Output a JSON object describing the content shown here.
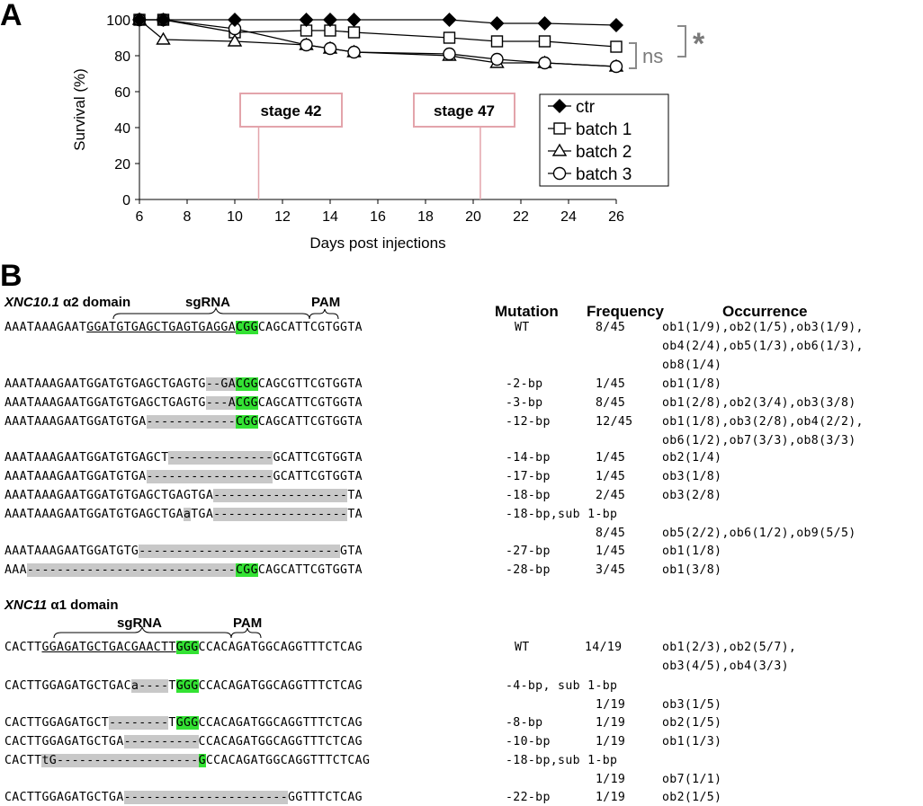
{
  "panel_a": {
    "letter": "A",
    "chart_data": {
      "type": "line",
      "xlabel": "Days post injections",
      "ylabel": "Survival (%)",
      "xlim": [
        6,
        26
      ],
      "ylim": [
        0,
        100
      ],
      "x_ticks": [
        "6",
        "8",
        "10",
        "12",
        "14",
        "16",
        "18",
        "20",
        "22",
        "24",
        "26"
      ],
      "y_ticks": [
        "0",
        "20",
        "40",
        "60",
        "80",
        "100"
      ],
      "series": [
        {
          "name": "ctr",
          "marker": "diamond",
          "x": [
            6,
            7,
            10,
            13,
            14,
            15,
            19,
            21,
            23,
            26
          ],
          "values": [
            100,
            100,
            100,
            100,
            100,
            100,
            100,
            98,
            98,
            97
          ]
        },
        {
          "name": "batch 1",
          "marker": "square",
          "x": [
            6,
            7,
            10,
            13,
            14,
            15,
            19,
            21,
            23,
            26
          ],
          "values": [
            100,
            100,
            93,
            94,
            94,
            93,
            90,
            88,
            88,
            85
          ]
        },
        {
          "name": "batch 2",
          "marker": "triangle",
          "x": [
            6,
            7,
            10,
            13,
            14,
            15,
            19,
            21,
            23,
            26
          ],
          "values": [
            100,
            89,
            88,
            86,
            84,
            82,
            80,
            76,
            76,
            74
          ]
        },
        {
          "name": "batch 3",
          "marker": "circle",
          "x": [
            6,
            7,
            10,
            13,
            14,
            15,
            19,
            21,
            23,
            26
          ],
          "values": [
            100,
            100,
            95,
            86,
            84,
            82,
            81,
            78,
            76,
            74
          ]
        }
      ],
      "annotations": [
        {
          "text": "stage 42",
          "x": 11
        },
        {
          "text": "stage 47",
          "x": 20.3
        }
      ],
      "significance": {
        "ns": "ns",
        "star": "*"
      },
      "legend_position": "center-right"
    }
  },
  "panel_b": {
    "letter": "B",
    "headers": {
      "mutation": "Mutation",
      "frequency": "Frequency",
      "occurrence": "Occurrence"
    },
    "xnc10": {
      "title_gene": "XNC10.1",
      "title_rest": " α2 domain",
      "sgrna_label": "sgRNA",
      "pam_label": "PAM",
      "wt_seq": {
        "pre": "AAATAAAGAAT",
        "sg": "GGATGTGAGCTGAGTGAGGA",
        "pam": "CGG",
        "post": "CAGCATTCGTGGTA"
      },
      "rows": [
        {
          "segs": [
            [
              "n",
              "AAATAAAGAATGGATGTGAGCTGAGTG"
            ],
            [
              "g",
              "--"
            ],
            [
              "g",
              "GA"
            ],
            [
              "p",
              "CGG"
            ],
            [
              "n",
              "CAGCGTTCGTGGTA"
            ]
          ],
          "mutation": "-2-bp",
          "frequency": "1/45",
          "occurrence": "ob1(1/8)"
        },
        {
          "segs": [
            [
              "n",
              "AAATAAAGAATGGATGTGAGCTGAGTG"
            ],
            [
              "g",
              "---"
            ],
            [
              "g",
              "A"
            ],
            [
              "p",
              "CGG"
            ],
            [
              "n",
              "CAGCATTCGTGGTA"
            ]
          ],
          "mutation": "-3-bp",
          "frequency": "8/45",
          "occurrence": "ob1(2/8),ob2(3/4),ob3(3/8)"
        },
        {
          "segs": [
            [
              "n",
              "AAATAAAGAATGGATGTGA"
            ],
            [
              "g",
              "------------"
            ],
            [
              "p",
              "CGG"
            ],
            [
              "n",
              "CAGCATTCGTGGTA"
            ]
          ],
          "mutation": "-12-bp",
          "frequency": "12/45",
          "occurrence": "ob1(1/8),ob3(2/8),ob4(2/2),",
          "occurrence2": "ob6(1/2),ob7(3/3),ob8(3/3)"
        },
        {
          "segs": [
            [
              "n",
              "AAATAAAGAATGGATGTGAGCT"
            ],
            [
              "g",
              "--------------"
            ],
            [
              "n",
              "GCATTCGTGGTA"
            ]
          ],
          "mutation": "-14-bp",
          "frequency": "1/45",
          "occurrence": "ob2(1/4)"
        },
        {
          "segs": [
            [
              "n",
              "AAATAAAGAATGGATGTGA"
            ],
            [
              "g",
              "-----------------"
            ],
            [
              "n",
              "GCATTCGTGGTA"
            ]
          ],
          "mutation": "-17-bp",
          "frequency": "1/45",
          "occurrence": "ob3(1/8)"
        },
        {
          "segs": [
            [
              "n",
              "AAATAAAGAATGGATGTGAGCTGAGTGA"
            ],
            [
              "g",
              "------------------"
            ],
            [
              "n",
              "TA"
            ]
          ],
          "mutation": "-18-bp",
          "frequency": "2/45",
          "occurrence": "ob3(2/8)"
        },
        {
          "segs": [
            [
              "n",
              "AAATAAAGAATGGATGTGAGCTGA"
            ],
            [
              "g",
              "a"
            ],
            [
              "n",
              "TGA"
            ],
            [
              "g",
              "------------------"
            ],
            [
              "n",
              "TA"
            ]
          ],
          "mutation": "-18-bp,sub 1-bp",
          "frequency": "8/45",
          "occurrence": "ob5(2/2),ob6(1/2),ob9(5/5)"
        },
        {
          "segs": [
            [
              "n",
              "AAATAAAGAATGGATGTG"
            ],
            [
              "g",
              "---------------------------"
            ],
            [
              "n",
              "GTA"
            ]
          ],
          "mutation": "-27-bp",
          "frequency": "1/45",
          "occurrence": "ob1(1/8)"
        },
        {
          "segs": [
            [
              "n",
              "AAA"
            ],
            [
              "g",
              "----------------------------"
            ],
            [
              "p",
              "CGG"
            ],
            [
              "n",
              "CAGCATTCGTGGTA"
            ]
          ],
          "mutation": "-28-bp",
          "frequency": "3/45",
          "occurrence": "ob1(3/8)"
        }
      ],
      "wt": {
        "mutation": "WT",
        "frequency": "8/45",
        "occurrence": "ob1(1/9),ob2(1/5),ob3(1/9),",
        "occurrence2": "ob4(2/4),ob5(1/3),ob6(1/3),",
        "occurrence3": "ob8(1/4)"
      }
    },
    "xnc11": {
      "title_gene": "XNC11",
      "title_rest": " α1 domain",
      "sgrna_label": "sgRNA",
      "pam_label": "PAM",
      "wt_seq": {
        "pre": "CACTT",
        "sg": "GGAGATGCTGACGAACTT",
        "pam": "GGG",
        "post": "CCACAGATGGCAGGTTTCTCAG"
      },
      "wt": {
        "mutation": "WT",
        "frequency": "14/19",
        "occurrence": "ob1(2/3),ob2(5/7),",
        "occurrence2": "ob3(4/5),ob4(3/3)"
      },
      "rows": [
        {
          "segs": [
            [
              "n",
              "CACTTGGAGATGCTGAC"
            ],
            [
              "g",
              "a----"
            ],
            [
              "n",
              "T"
            ],
            [
              "p",
              "GGG"
            ],
            [
              "n",
              "CCACAGATGGCAGGTTTCTCAG"
            ]
          ],
          "mutation": "-4-bp, sub 1-bp",
          "frequency": "1/19",
          "occurrence": "ob3(1/5)"
        },
        {
          "segs": [
            [
              "n",
              "CACTTGGAGATGCT"
            ],
            [
              "g",
              "--------"
            ],
            [
              "n",
              "T"
            ],
            [
              "p",
              "GGG"
            ],
            [
              "n",
              "CCACAGATGGCAGGTTTCTCAG"
            ]
          ],
          "mutation": "-8-bp",
          "frequency": "1/19",
          "occurrence": "ob2(1/5)"
        },
        {
          "segs": [
            [
              "n",
              "CACTTGGAGATGCTGA"
            ],
            [
              "g",
              "----------"
            ],
            [
              "n",
              "CCACAGATGGCAGGTTTCTCAG"
            ]
          ],
          "mutation": "-10-bp",
          "frequency": "1/19",
          "occurrence": "ob1(1/3)"
        },
        {
          "segs": [
            [
              "n",
              "CACTT"
            ],
            [
              "g",
              "tG"
            ],
            [
              "g",
              "-------------------"
            ],
            [
              "p",
              "G"
            ],
            [
              "n",
              "CCACAGATGGCAGGTTTCTCAG"
            ]
          ],
          "mutation": "-18-bp,sub 1-bp",
          "frequency": "1/19",
          "occurrence": "ob7(1/1)"
        },
        {
          "segs": [
            [
              "n",
              "CACTTGGAGATGCTGA"
            ],
            [
              "g",
              "----------------------"
            ],
            [
              "n",
              "GGTTTCTCAG"
            ]
          ],
          "mutation": "-22-bp",
          "frequency": "1/19",
          "occurrence": "ob2(1/5)"
        }
      ]
    }
  }
}
